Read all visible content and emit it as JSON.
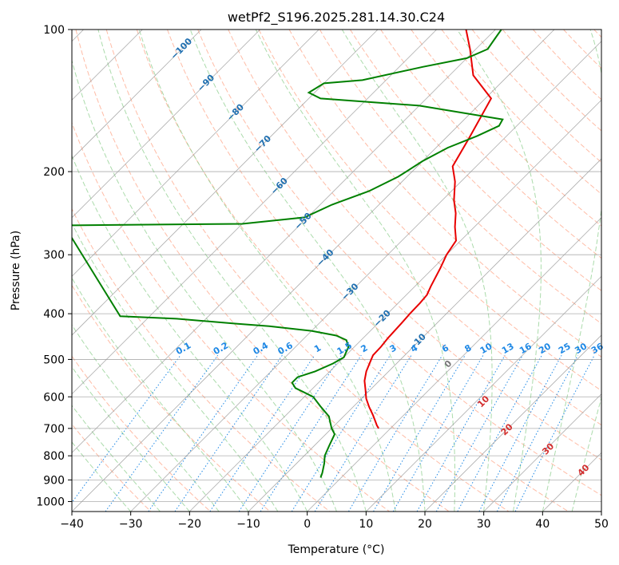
{
  "chart_data": {
    "type": "line",
    "title": "wetPf2_S196.2025.281.14.30.C24",
    "xlabel": "Temperature (°C)",
    "ylabel": "Pressure (hPa)",
    "xlim": [
      -40,
      50
    ],
    "ylim": [
      1050,
      100
    ],
    "y_scale": "log",
    "grid": true,
    "x_ticks": [
      -40,
      -30,
      -20,
      -10,
      0,
      10,
      20,
      30,
      40,
      50
    ],
    "x_tick_labels": [
      "−40",
      "−30",
      "−20",
      "−10",
      "0",
      "10",
      "20",
      "30",
      "40",
      "50"
    ],
    "y_ticks": [
      100,
      200,
      300,
      400,
      500,
      600,
      700,
      800,
      900,
      1000
    ],
    "y_tick_labels": [
      "100",
      "200",
      "300",
      "400",
      "500",
      "600",
      "700",
      "800",
      "900",
      "1000"
    ],
    "skew": 1.0,
    "colors": {
      "temperature": "#e80000",
      "dewpoint": "#008000",
      "isotherm": "#999999",
      "dry_adiabat": "#ff9f80",
      "moist_adiabat": "#8fcf8f",
      "mixing_ratio": "#1e88e5",
      "isotherm_label": "#1f6fb0",
      "mixing_ratio_label": "#1e88e5",
      "moist_label": "#d32f2f",
      "zero_label": "#777777"
    },
    "series": [
      {
        "name": "",
        "role": "temperature",
        "points": [
          [
            -2,
            700
          ],
          [
            -2.8,
            690
          ],
          [
            -3.5,
            680
          ],
          [
            -5.3,
            655
          ],
          [
            -7.3,
            630
          ],
          [
            -9.2,
            605
          ],
          [
            -10.8,
            580
          ],
          [
            -12.5,
            555
          ],
          [
            -13.8,
            530
          ],
          [
            -14.8,
            505
          ],
          [
            -15.4,
            490
          ],
          [
            -15.5,
            470
          ],
          [
            -15.8,
            450
          ],
          [
            -16.0,
            420
          ],
          [
            -16.2,
            400
          ],
          [
            -16.3,
            380
          ],
          [
            -16.5,
            365
          ],
          [
            -17.3,
            350
          ],
          [
            -18.8,
            320
          ],
          [
            -20.0,
            300
          ],
          [
            -20.8,
            280
          ],
          [
            -23.3,
            262
          ],
          [
            -25.5,
            245
          ],
          [
            -28.0,
            230
          ],
          [
            -31.0,
            210
          ],
          [
            -34.0,
            195
          ],
          [
            -36.0,
            170
          ],
          [
            -39.0,
            140
          ],
          [
            -46.0,
            125
          ],
          [
            -51.0,
            110
          ],
          [
            -55.0,
            100
          ]
        ]
      },
      {
        "name": "",
        "role": "dewpoint",
        "points": [
          [
            -3.5,
            890
          ],
          [
            -4.0,
            870
          ],
          [
            -5.3,
            830
          ],
          [
            -6.5,
            800
          ],
          [
            -7.5,
            760
          ],
          [
            -8.5,
            720
          ],
          [
            -10.0,
            700
          ],
          [
            -12.5,
            660
          ],
          [
            -15.5,
            630
          ],
          [
            -18.5,
            600
          ],
          [
            -23.0,
            575
          ],
          [
            -24.5,
            560
          ],
          [
            -24.5,
            545
          ],
          [
            -22.5,
            530
          ],
          [
            -20.8,
            510
          ],
          [
            -20.0,
            495
          ],
          [
            -21.0,
            470
          ],
          [
            -22.5,
            455
          ],
          [
            -25.0,
            445
          ],
          [
            -30.0,
            435
          ],
          [
            -38.0,
            425
          ],
          [
            -44.0,
            420
          ],
          [
            -55.0,
            410
          ],
          [
            -65.0,
            405
          ],
          [
            -90.0,
            260
          ],
          [
            -60.0,
            258
          ],
          [
            -50.5,
            250
          ],
          [
            -48.0,
            235
          ],
          [
            -44.0,
            220
          ],
          [
            -41.5,
            205
          ],
          [
            -40.0,
            190
          ],
          [
            -38.0,
            178
          ],
          [
            -35.0,
            168
          ],
          [
            -33.0,
            160
          ],
          [
            -33.5,
            155
          ],
          [
            -50.0,
            145
          ],
          [
            -68.0,
            140
          ],
          [
            -71.0,
            136
          ],
          [
            -70.0,
            130
          ],
          [
            -64.0,
            128
          ],
          [
            -56.0,
            120
          ],
          [
            -50.0,
            115
          ],
          [
            -48.0,
            110
          ],
          [
            -48.5,
            105
          ],
          [
            -49.0,
            100
          ]
        ]
      }
    ],
    "isotherm_labels": [
      "−100",
      "−90",
      "−80",
      "−70",
      "−60",
      "−50",
      "−40",
      "−30",
      "−20",
      "−10"
    ],
    "mixing_ratio_labels": [
      "0.1",
      "0.2",
      "0.4",
      "0.6",
      "1",
      "1.5",
      "2",
      "3",
      "4",
      "6",
      "8",
      "10",
      "13",
      "16",
      "20",
      "25",
      "30",
      "36"
    ],
    "moist_adiabat_labels": [
      "0",
      "10",
      "20",
      "30",
      "40"
    ]
  }
}
